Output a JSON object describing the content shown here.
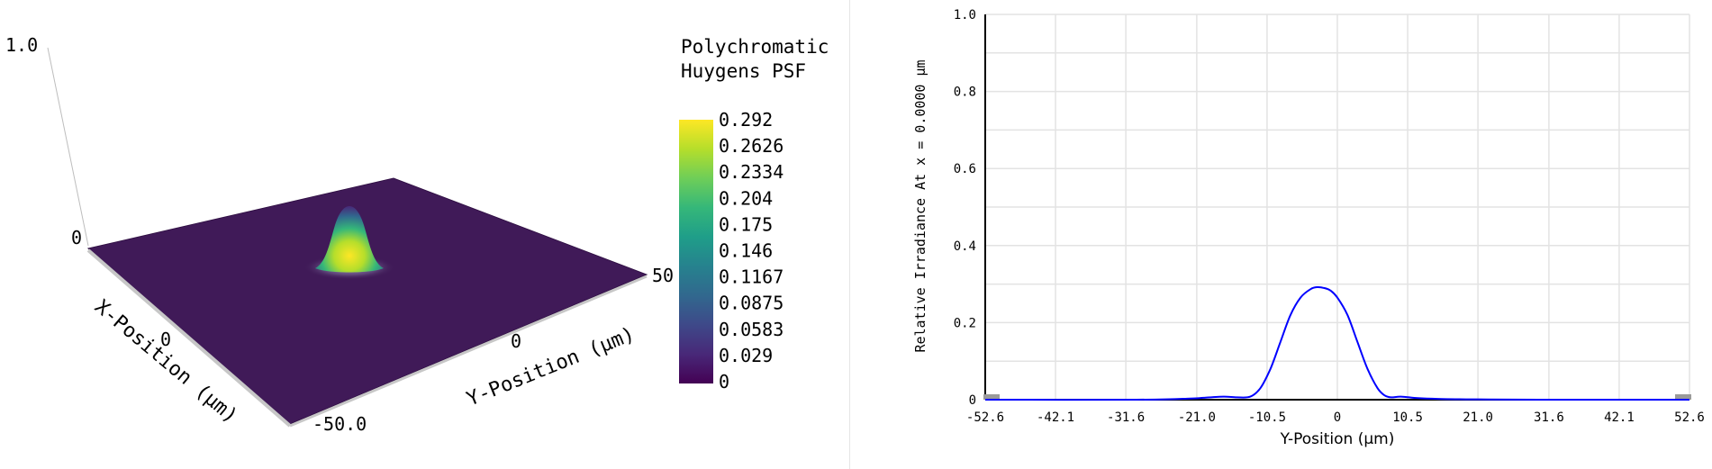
{
  "chart_data": [
    {
      "type": "surface",
      "title_lines": [
        "Polychromatic",
        "Huygens PSF"
      ],
      "z_axis": {
        "ticks": [
          "1.0",
          "0"
        ],
        "range": [
          0,
          1.0
        ]
      },
      "x_axis": {
        "label": "X-Position (µm)",
        "ticks": [
          "0",
          "-50.0"
        ]
      },
      "y_axis": {
        "label": "Y-Position (µm)",
        "ticks": [
          "0",
          "50"
        ]
      },
      "peak": {
        "x": 0,
        "y": -3.5,
        "value": 0.292
      },
      "colorbar": {
        "colors": [
          "#440154",
          "#482878",
          "#3e4989",
          "#31688e",
          "#26828e",
          "#1f9e89",
          "#35b779",
          "#6ece58",
          "#b5de2b",
          "#fde725"
        ],
        "ticks": [
          "0.292",
          "0.2626",
          "0.2334",
          "0.204",
          "0.175",
          "0.146",
          "0.1167",
          "0.0875",
          "0.0583",
          "0.029",
          "0"
        ]
      }
    },
    {
      "type": "line",
      "xlabel": "Y-Position (µm)",
      "ylabel": "Relative Irradiance At x = 0.0000 µm",
      "xlim": [
        -52.6,
        52.6
      ],
      "ylim": [
        0,
        1.0
      ],
      "x_ticks": [
        "-52.6",
        "-42.1",
        "-31.6",
        "-21.0",
        "-10.5",
        "0",
        "10.5",
        "21.0",
        "31.6",
        "42.1",
        "52.6"
      ],
      "y_ticks": [
        "0",
        "0.2",
        "0.4",
        "0.6",
        "0.8",
        "1.0"
      ],
      "series": [
        {
          "color": "#0000ff",
          "x": [
            -52.6,
            -30,
            -22,
            -20,
            -17,
            -15,
            -13,
            -11.5,
            -10,
            -8.5,
            -7,
            -5.5,
            -4,
            -3,
            -2,
            -1,
            0,
            1.5,
            3,
            4.5,
            6,
            7,
            8,
            9.5,
            12,
            15,
            20,
            30,
            52.6
          ],
          "y": [
            0.0,
            0.0,
            0.003,
            0.005,
            0.008,
            0.006,
            0.008,
            0.03,
            0.08,
            0.15,
            0.22,
            0.265,
            0.287,
            0.292,
            0.29,
            0.283,
            0.265,
            0.22,
            0.15,
            0.08,
            0.03,
            0.012,
            0.006,
            0.008,
            0.004,
            0.002,
            0.001,
            0.0,
            0.0
          ]
        }
      ]
    }
  ]
}
